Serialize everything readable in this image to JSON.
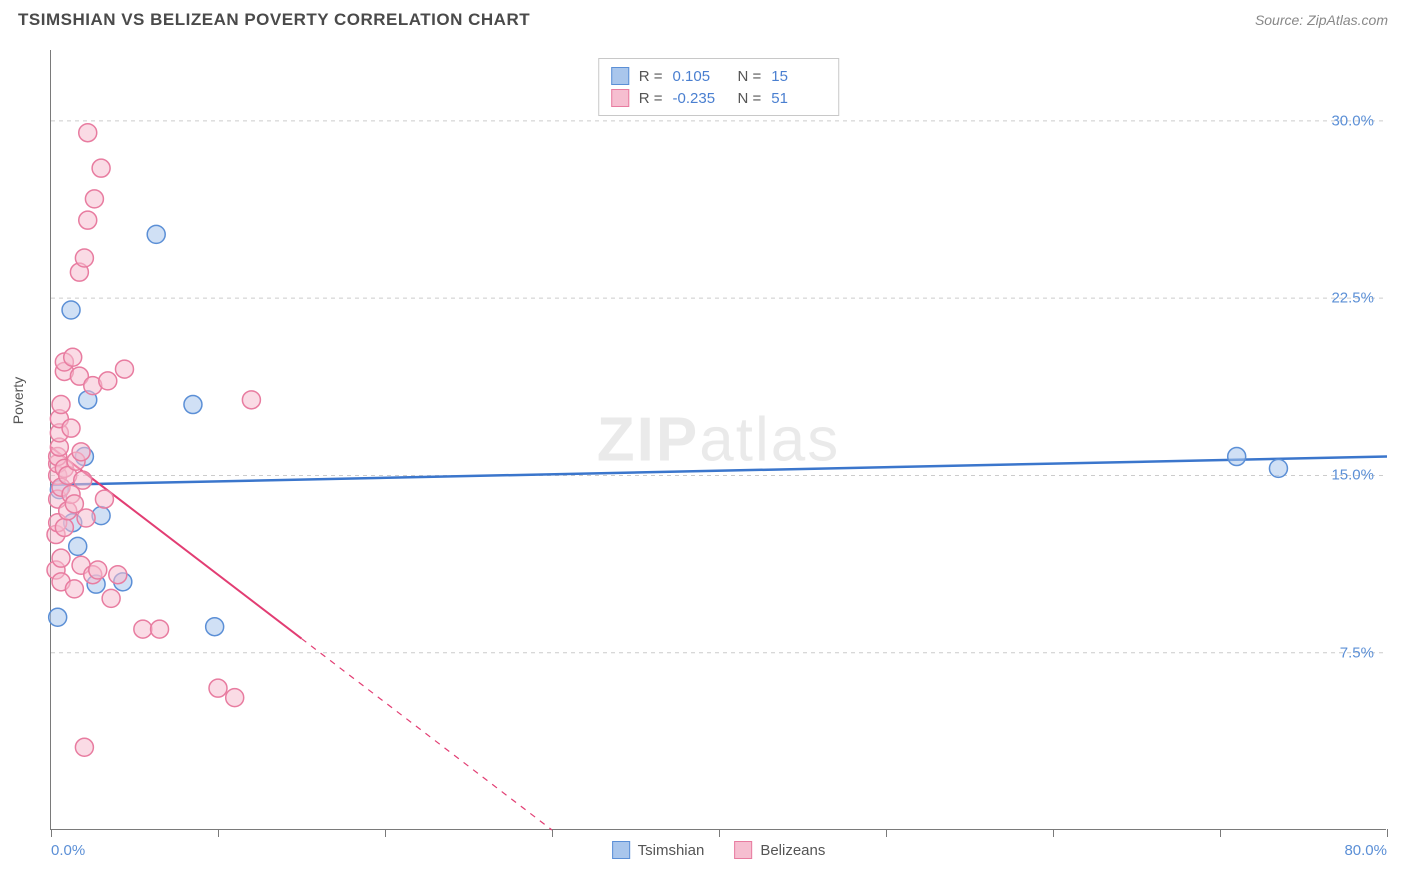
{
  "title": "TSIMSHIAN VS BELIZEAN POVERTY CORRELATION CHART",
  "source_label": "Source: ZipAtlas.com",
  "y_axis_title": "Poverty",
  "watermark": {
    "bold": "ZIP",
    "light": "atlas"
  },
  "chart": {
    "type": "scatter",
    "xlim": [
      0,
      80
    ],
    "ylim": [
      0,
      33
    ],
    "x_ticks": [
      0,
      10,
      20,
      30,
      40,
      50,
      60,
      70,
      80
    ],
    "x_tick_labels_shown": {
      "0": "0.0%",
      "80": "80.0%"
    },
    "y_gridlines": [
      7.5,
      15.0,
      22.5,
      30.0
    ],
    "y_tick_labels": [
      "7.5%",
      "15.0%",
      "22.5%",
      "30.0%"
    ],
    "background_color": "#ffffff",
    "grid_color": "#cccccc",
    "axis_color": "#7a7a7a",
    "tick_label_color": "#5b8fd6",
    "marker_radius": 9,
    "marker_stroke_width": 1.5,
    "marker_fill_opacity": 0.25,
    "series": [
      {
        "name": "Tsimshian",
        "color_stroke": "#5b8fd6",
        "color_fill": "#a9c6ec",
        "r_value": "0.105",
        "n_value": "15",
        "points": [
          [
            0.4,
            9.0
          ],
          [
            0.5,
            14.4
          ],
          [
            1.2,
            22.0
          ],
          [
            1.3,
            13.0
          ],
          [
            1.6,
            12.0
          ],
          [
            2.0,
            15.8
          ],
          [
            2.2,
            18.2
          ],
          [
            2.7,
            10.4
          ],
          [
            3.0,
            13.3
          ],
          [
            4.3,
            10.5
          ],
          [
            6.3,
            25.2
          ],
          [
            8.5,
            18.0
          ],
          [
            9.8,
            8.6
          ],
          [
            71.0,
            15.8
          ],
          [
            73.5,
            15.3
          ]
        ],
        "trend": {
          "x1": 0,
          "y1": 14.6,
          "x2": 80,
          "y2": 15.8,
          "color": "#3b76cc",
          "width": 2.5,
          "dash_after_x": null
        }
      },
      {
        "name": "Belizeans",
        "color_stroke": "#e87ca0",
        "color_fill": "#f6bed0",
        "r_value": "-0.235",
        "n_value": "51",
        "points": [
          [
            0.3,
            11.0
          ],
          [
            0.3,
            12.5
          ],
          [
            0.4,
            13.0
          ],
          [
            0.4,
            14.0
          ],
          [
            0.4,
            15.0
          ],
          [
            0.4,
            15.5
          ],
          [
            0.4,
            15.8
          ],
          [
            0.5,
            16.2
          ],
          [
            0.5,
            16.8
          ],
          [
            0.5,
            17.4
          ],
          [
            0.6,
            10.5
          ],
          [
            0.6,
            11.5
          ],
          [
            0.6,
            14.5
          ],
          [
            0.6,
            18.0
          ],
          [
            0.8,
            12.8
          ],
          [
            0.8,
            15.3
          ],
          [
            0.8,
            19.4
          ],
          [
            0.8,
            19.8
          ],
          [
            1.0,
            13.5
          ],
          [
            1.0,
            15.0
          ],
          [
            1.2,
            14.2
          ],
          [
            1.2,
            17.0
          ],
          [
            1.3,
            20.0
          ],
          [
            1.4,
            10.2
          ],
          [
            1.4,
            13.8
          ],
          [
            1.5,
            15.6
          ],
          [
            1.7,
            19.2
          ],
          [
            1.7,
            23.6
          ],
          [
            1.8,
            11.2
          ],
          [
            1.8,
            16.0
          ],
          [
            1.9,
            14.8
          ],
          [
            2.0,
            24.2
          ],
          [
            2.1,
            13.2
          ],
          [
            2.2,
            25.8
          ],
          [
            2.2,
            29.5
          ],
          [
            2.5,
            18.8
          ],
          [
            2.5,
            10.8
          ],
          [
            2.6,
            26.7
          ],
          [
            2.8,
            11.0
          ],
          [
            3.0,
            28.0
          ],
          [
            3.2,
            14.0
          ],
          [
            3.4,
            19.0
          ],
          [
            3.6,
            9.8
          ],
          [
            4.0,
            10.8
          ],
          [
            4.4,
            19.5
          ],
          [
            5.5,
            8.5
          ],
          [
            6.5,
            8.5
          ],
          [
            10.0,
            6.0
          ],
          [
            11.0,
            5.6
          ],
          [
            12.0,
            18.2
          ],
          [
            2.0,
            3.5
          ]
        ],
        "trend": {
          "x1": 0,
          "y1": 16.2,
          "x2": 30,
          "y2": 0,
          "color": "#e23d73",
          "width": 2,
          "dash_after_x": 15
        }
      }
    ]
  },
  "legend_bottom": [
    {
      "label": "Tsimshian",
      "stroke": "#5b8fd6",
      "fill": "#a9c6ec"
    },
    {
      "label": "Belizeans",
      "stroke": "#e87ca0",
      "fill": "#f6bed0"
    }
  ]
}
